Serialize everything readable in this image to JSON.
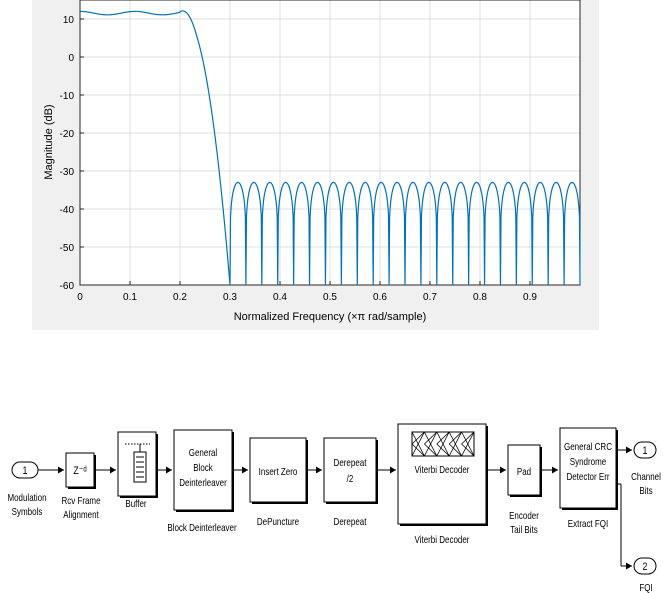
{
  "chart_data": {
    "type": "line",
    "title": "",
    "xlabel": "Normalized Frequency (×π rad/sample)",
    "ylabel": "Magnitude (dB)",
    "xlim": [
      0,
      1
    ],
    "ylim": [
      -60,
      15
    ],
    "xticks": [
      "0",
      "0.1",
      "0.2",
      "0.3",
      "0.4",
      "0.5",
      "0.6",
      "0.7",
      "0.8",
      "0.9"
    ],
    "yticks": [
      "10",
      "0",
      "-10",
      "-20",
      "-30",
      "-40",
      "-50",
      "-60"
    ],
    "grid": true,
    "series": [
      {
        "color": "#0072bd",
        "passband_level": 12,
        "passband_ripple": 1,
        "cutoff": 0.3,
        "stopband_peak": -33,
        "lobe_count": 22,
        "stopband_start": 0.3,
        "stopband_end": 1.0
      }
    ]
  },
  "diagram": {
    "inports": [
      {
        "number": "1",
        "label_lines": [
          "Modulation",
          "Symbols"
        ]
      }
    ],
    "outports": [
      {
        "number": "1",
        "label_lines": [
          "Channel",
          "Bits"
        ]
      },
      {
        "number": "2",
        "label_lines": [
          "FQI"
        ]
      }
    ],
    "blocks": [
      {
        "id": "rcv-frame-alignment",
        "inner": "Z⁻ᵈ",
        "caption_lines": [
          "Rcv Frame",
          "Alignment"
        ]
      },
      {
        "id": "buffer",
        "inner": "",
        "caption_lines": [
          "Buffer"
        ]
      },
      {
        "id": "block-deinterleaver",
        "inner_lines": [
          "General",
          "Block",
          "Deinterleaver"
        ],
        "caption_lines": [
          "Block Deinterleaver"
        ]
      },
      {
        "id": "depuncture",
        "inner_lines": [
          "Insert Zero"
        ],
        "caption_lines": [
          "DePuncture"
        ]
      },
      {
        "id": "derepeat",
        "inner_lines": [
          "Derepeat",
          "/2"
        ],
        "caption_lines": [
          "Derepeat"
        ]
      },
      {
        "id": "viterbi-decoder",
        "inner_lines": [
          "Viterbi Decoder"
        ],
        "caption_lines": [
          "Viterbi Decoder"
        ]
      },
      {
        "id": "encoder-tail-bits",
        "inner_lines": [
          "Pad"
        ],
        "caption_lines": [
          "Encoder",
          "Tail Bits"
        ]
      },
      {
        "id": "extract-fqi",
        "inner_lines": [
          "General CRC",
          "Syndrome",
          "Detector Err"
        ],
        "caption_lines": [
          "Extract FQI"
        ]
      }
    ]
  }
}
